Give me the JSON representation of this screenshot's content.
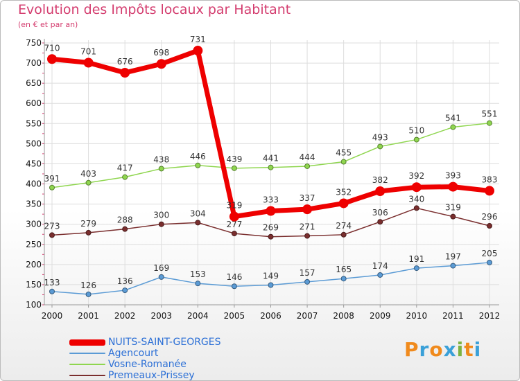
{
  "title": "Evolution des Impôts locaux par Habitant",
  "subtitle": "(en € et par an)",
  "logo": {
    "text": "Proxiti",
    "letter_colors": [
      "#f08a1c",
      "#3aa0d8",
      "#f08a1c",
      "#3aa0d8",
      "#7cb342",
      "#f08a1c",
      "#3aa0d8"
    ]
  },
  "chart_data": {
    "type": "line",
    "title": "Evolution des Impôts locaux par Habitant",
    "subtitle": "(en € et par an)",
    "categories": [
      "2000",
      "2001",
      "2002",
      "2003",
      "2004",
      "2005",
      "2006",
      "2007",
      "2008",
      "2009",
      "2010",
      "2011",
      "2012"
    ],
    "ylim": [
      100,
      750
    ],
    "yticks": [
      "100",
      "150",
      "200",
      "250",
      "300",
      "350",
      "400",
      "450",
      "500",
      "550",
      "600",
      "650",
      "700",
      "750"
    ],
    "grid": true,
    "legend_position": "bottom-left",
    "series": [
      {
        "name": "Premeaux-Prissey",
        "color": "#7a2e2e",
        "values": [
          273,
          279,
          288,
          300,
          304,
          277,
          269,
          271,
          274,
          306,
          340,
          319,
          296
        ],
        "labels": [
          "273",
          "279",
          "288",
          "300",
          "304",
          "277",
          "269",
          "271",
          "274",
          "306",
          "340",
          "319",
          "296"
        ]
      },
      {
        "name": "Agencourt",
        "color": "#5b9bd5",
        "values": [
          133,
          126,
          136,
          169,
          153,
          146,
          149,
          157,
          165,
          174,
          191,
          197,
          205
        ],
        "labels": [
          "133",
          "126",
          "136",
          "169",
          "153",
          "146",
          "149",
          "157",
          "165",
          "174",
          "191",
          "197",
          "205"
        ]
      },
      {
        "name": "Vosne-Romanée",
        "color": "#8fd64f",
        "values": [
          391,
          403,
          417,
          438,
          446,
          439,
          441,
          444,
          455,
          493,
          510,
          541,
          551
        ],
        "labels": [
          "391",
          "403",
          "417",
          "438",
          "446",
          "439",
          "441",
          "444",
          "455",
          "493",
          "510",
          "541",
          "551"
        ]
      },
      {
        "name": "NUITS-SAINT-GEORGES",
        "color": "#ee0000",
        "values": [
          710,
          701,
          676,
          698,
          731,
          319,
          333,
          337,
          352,
          382,
          392,
          393,
          383
        ],
        "labels": [
          "710",
          "701",
          "676",
          "698",
          "731",
          "319",
          "333",
          "337",
          "352",
          "382",
          "392",
          "393",
          "383"
        ]
      }
    ],
    "legend_order": [
      "NUITS-SAINT-GEORGES",
      "Agencourt",
      "Vosne-Romanée",
      "Premeaux-Prissey"
    ]
  }
}
